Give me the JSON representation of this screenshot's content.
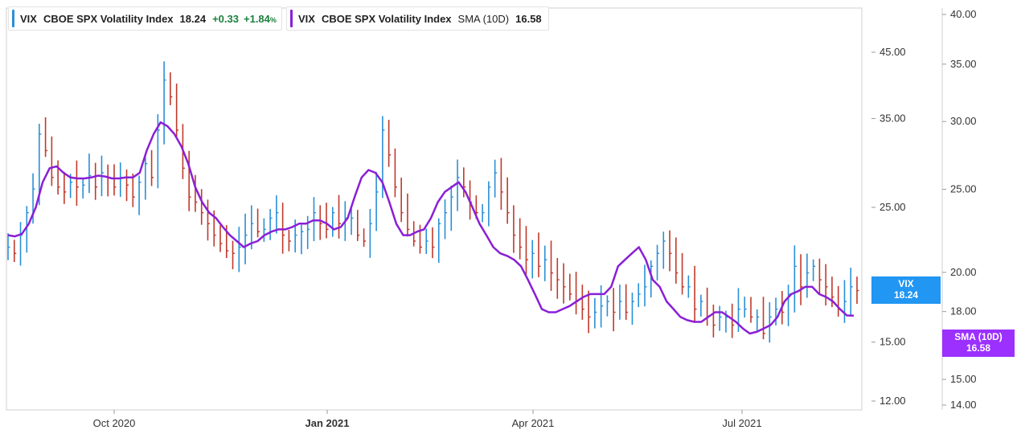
{
  "legend_main": {
    "symbol": "VIX",
    "name": "CBOE SPX Volatility Index",
    "last": "18.24",
    "change": "+0.33",
    "change_pct": "+1.84",
    "pct_unit": "%",
    "color": "#2a8fd6"
  },
  "legend_sma": {
    "symbol": "VIX",
    "name": "CBOE SPX Volatility Index",
    "label": "SMA (10D)",
    "value": "16.58",
    "color": "#8a1fd6"
  },
  "tags": {
    "vix": {
      "title": "VIX",
      "value": "18.24",
      "color": "#2196f3"
    },
    "sma": {
      "title": "SMA (10D)",
      "value": "16.58",
      "color": "#9b30ff"
    }
  },
  "chart_data": {
    "type": "line",
    "up_color": "#2a8fd6",
    "down_color": "#c0392b",
    "sma_color": "#8a1fd6",
    "x_labels": [
      "Oct 2020",
      "Jan 2021",
      "Apr 2021",
      "Jul 2021"
    ],
    "y_axis_left_ticks": [
      "45.00",
      "35.00",
      "25.00",
      "15.00",
      "12.00"
    ],
    "y_axis_right_ticks": [
      "40.00",
      "35.00",
      "30.00",
      "25.00",
      "20.00",
      "18.00",
      "15.00",
      "14.00"
    ],
    "series": [
      {
        "name": "VIX",
        "values": [
          21.5,
          21.0,
          22.5,
          24.5,
          26.8,
          33.0,
          31.0,
          28.0,
          27.0,
          26.5,
          27.5,
          27.0,
          27.2,
          28.2,
          27.0,
          28.5,
          28.0,
          27.0,
          28.0,
          27.2,
          26.0,
          27.5,
          29.5,
          28.0,
          33.5,
          40.5,
          38.0,
          33.5,
          29.0,
          26.0,
          25.5,
          24.5,
          23.5,
          22.5,
          21.8,
          21.2,
          21.0,
          21.5,
          22.5,
          23.5,
          22.8,
          23.0,
          24.0,
          24.5,
          22.5,
          22.0,
          22.5,
          22.8,
          23.0,
          24.5,
          23.5,
          23.0,
          24.5,
          23.5,
          24.0,
          24.0,
          22.5,
          22.0,
          23.5,
          26.5,
          33.5,
          30.5,
          27.0,
          24.5,
          23.0,
          22.0,
          21.5,
          22.0,
          21.5,
          23.5,
          24.5,
          26.0,
          28.0,
          27.0,
          25.5,
          24.5,
          24.5,
          27.0,
          28.5,
          26.5,
          24.5,
          22.5,
          21.5,
          20.5,
          21.0,
          20.0,
          20.5,
          19.5,
          19.0,
          18.5,
          18.0,
          17.5,
          17.0,
          16.5,
          16.8,
          17.2,
          17.5,
          16.8,
          17.5,
          16.8,
          17.5,
          18.0,
          18.5,
          20.0,
          21.0,
          22.0,
          21.0,
          19.5,
          18.5,
          18.5,
          17.0,
          17.5,
          16.5,
          16.0,
          16.5,
          16.5,
          16.0,
          17.0,
          17.0,
          16.5,
          16.5,
          15.5,
          16.5,
          17.0,
          16.8,
          18.0,
          20.0,
          18.5,
          19.5,
          20.0,
          19.0,
          18.5,
          17.8,
          17.0,
          17.5,
          18.5,
          18.24
        ]
      },
      {
        "name": "SMA (10D)",
        "values": [
          22.5,
          22.4,
          22.6,
          23.5,
          25.0,
          27.5,
          29.0,
          29.2,
          28.5,
          28.0,
          27.9,
          27.9,
          28.0,
          28.2,
          28.1,
          27.9,
          27.9,
          28.0,
          28.0,
          28.5,
          31.0,
          33.0,
          34.5,
          34.0,
          33.0,
          31.5,
          29.5,
          27.0,
          25.5,
          24.5,
          24.0,
          23.2,
          22.5,
          22.0,
          21.5,
          21.8,
          22.0,
          22.5,
          22.8,
          23.0,
          23.0,
          23.2,
          23.5,
          23.5,
          23.8,
          23.8,
          23.5,
          23.0,
          23.2,
          24.0,
          26.0,
          28.0,
          28.8,
          28.5,
          27.5,
          25.5,
          23.5,
          22.5,
          22.5,
          22.8,
          23.0,
          24.0,
          25.5,
          26.5,
          27.0,
          27.5,
          26.5,
          25.0,
          23.5,
          22.5,
          21.5,
          21.0,
          20.8,
          20.5,
          20.0,
          19.0,
          18.0,
          17.0,
          16.8,
          16.8,
          17.0,
          17.2,
          17.5,
          17.8,
          18.0,
          18.0,
          18.0,
          18.5,
          20.0,
          20.5,
          21.0,
          21.5,
          20.5,
          19.0,
          18.5,
          17.5,
          17.0,
          16.5,
          16.3,
          16.2,
          16.2,
          16.5,
          16.8,
          16.8,
          16.5,
          16.2,
          15.8,
          15.5,
          15.6,
          15.8,
          16.0,
          16.5,
          17.5,
          18.0,
          18.2,
          18.5,
          18.5,
          18.0,
          17.8,
          17.5,
          17.0,
          16.6,
          16.58
        ]
      }
    ]
  }
}
